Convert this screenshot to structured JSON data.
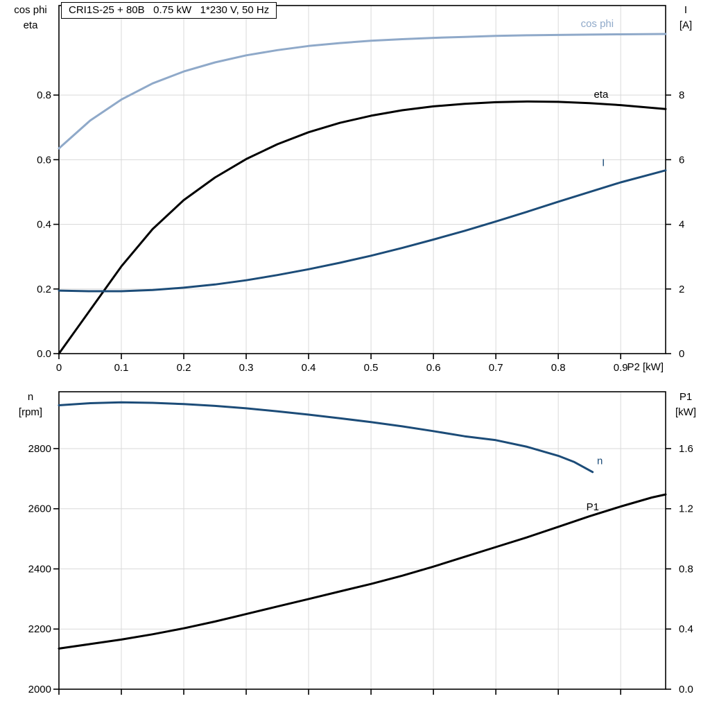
{
  "title": "CRI1S-25 + 80B   0.75 kW   1*230 V, 50 Hz",
  "axis_titles": {
    "top_left_line1": "cos phi",
    "top_left_line2": "eta",
    "top_right_line1": "I",
    "top_right_line2": "[A]",
    "x_label": "P2 [kW]",
    "bottom_left_line1": "n",
    "bottom_left_line2": "[rpm]",
    "bottom_right_line1": "P1",
    "bottom_right_line2": "[kW]"
  },
  "colors": {
    "cos_phi": "#8fa9c9",
    "dark_blue": "#1c4c78",
    "black": "#000000",
    "grid": "#d9d9d9",
    "axis": "#000000"
  },
  "chart_data": [
    {
      "type": "line",
      "title": "CRI1S-25 + 80B   0.75 kW   1*230 V, 50 Hz",
      "x_axis": {
        "min": 0,
        "max": 0.972,
        "label": "P2 [kW]",
        "ticks": [
          0,
          0.1,
          0.2,
          0.3,
          0.4,
          0.5,
          0.6,
          0.7,
          0.8,
          0.9
        ],
        "tick_labels": [
          "0",
          "0.1",
          "0.2",
          "0.3",
          "0.4",
          "0.5",
          "0.6",
          "0.7",
          "0.8",
          "0.9"
        ]
      },
      "y_left": {
        "min": 0,
        "max": 1.077,
        "label": "cos phi / eta",
        "ticks": [
          0,
          0.2,
          0.4,
          0.6,
          0.8
        ],
        "tick_labels": [
          "0.0",
          "0.2",
          "0.4",
          "0.6",
          "0.8"
        ]
      },
      "y_right": {
        "min": 0,
        "max": 10.77,
        "label": "I [A]",
        "ticks": [
          0,
          2,
          4,
          6,
          8
        ],
        "tick_labels": [
          "0",
          "2",
          "4",
          "6",
          "8"
        ]
      },
      "series": [
        {
          "name": "cos phi",
          "axis": "left",
          "color_key": "cos_phi",
          "width": 3,
          "label": {
            "text": "cos phi",
            "x": 0.836,
            "y": 1.01
          },
          "points": [
            [
              0,
              0.635
            ],
            [
              0.05,
              0.721
            ],
            [
              0.1,
              0.786
            ],
            [
              0.15,
              0.836
            ],
            [
              0.2,
              0.873
            ],
            [
              0.25,
              0.901
            ],
            [
              0.3,
              0.923
            ],
            [
              0.35,
              0.939
            ],
            [
              0.4,
              0.952
            ],
            [
              0.45,
              0.961
            ],
            [
              0.5,
              0.968
            ],
            [
              0.55,
              0.973
            ],
            [
              0.6,
              0.977
            ],
            [
              0.65,
              0.98
            ],
            [
              0.7,
              0.983
            ],
            [
              0.75,
              0.985
            ],
            [
              0.8,
              0.986
            ],
            [
              0.85,
              0.987
            ],
            [
              0.9,
              0.988
            ],
            [
              0.972,
              0.989
            ]
          ]
        },
        {
          "name": "eta",
          "axis": "left",
          "color_key": "black",
          "width": 3,
          "label": {
            "text": "eta",
            "x": 0.857,
            "y": 0.792
          },
          "points": [
            [
              0,
              0
            ],
            [
              0.05,
              0.135
            ],
            [
              0.1,
              0.27
            ],
            [
              0.15,
              0.385
            ],
            [
              0.2,
              0.475
            ],
            [
              0.25,
              0.545
            ],
            [
              0.3,
              0.602
            ],
            [
              0.35,
              0.648
            ],
            [
              0.4,
              0.685
            ],
            [
              0.45,
              0.714
            ],
            [
              0.5,
              0.736
            ],
            [
              0.55,
              0.753
            ],
            [
              0.6,
              0.765
            ],
            [
              0.65,
              0.773
            ],
            [
              0.7,
              0.778
            ],
            [
              0.75,
              0.78
            ],
            [
              0.8,
              0.779
            ],
            [
              0.85,
              0.775
            ],
            [
              0.9,
              0.769
            ],
            [
              0.972,
              0.757
            ]
          ]
        },
        {
          "name": "I",
          "axis": "right",
          "color_key": "dark_blue",
          "width": 3,
          "label": {
            "text": "I",
            "x": 0.87,
            "y": 5.8
          },
          "points": [
            [
              0,
              1.95
            ],
            [
              0.05,
              1.93
            ],
            [
              0.1,
              1.93
            ],
            [
              0.15,
              1.97
            ],
            [
              0.2,
              2.04
            ],
            [
              0.25,
              2.14
            ],
            [
              0.3,
              2.27
            ],
            [
              0.35,
              2.43
            ],
            [
              0.4,
              2.61
            ],
            [
              0.45,
              2.81
            ],
            [
              0.5,
              3.03
            ],
            [
              0.55,
              3.27
            ],
            [
              0.6,
              3.53
            ],
            [
              0.65,
              3.8
            ],
            [
              0.7,
              4.09
            ],
            [
              0.75,
              4.39
            ],
            [
              0.8,
              4.7
            ],
            [
              0.85,
              5.0
            ],
            [
              0.9,
              5.3
            ],
            [
              0.972,
              5.67
            ]
          ]
        }
      ]
    },
    {
      "type": "line",
      "x_axis": {
        "min": 0,
        "max": 0.972,
        "label": "",
        "ticks": [
          0,
          0.1,
          0.2,
          0.3,
          0.4,
          0.5,
          0.6,
          0.7,
          0.8,
          0.9
        ],
        "tick_labels": []
      },
      "y_left": {
        "min": 2000,
        "max": 2989,
        "label": "n [rpm]",
        "ticks": [
          2000,
          2200,
          2400,
          2600,
          2800
        ],
        "tick_labels": [
          "2000",
          "2200",
          "2400",
          "2600",
          "2800"
        ]
      },
      "y_right": {
        "min": 0,
        "max": 1.978,
        "label": "P1 [kW]",
        "ticks": [
          0,
          0.4,
          0.8,
          1.2,
          1.6
        ],
        "tick_labels": [
          "0.0",
          "0.4",
          "0.8",
          "1.2",
          "1.6"
        ]
      },
      "series": [
        {
          "name": "n",
          "axis": "left",
          "color_key": "dark_blue",
          "width": 3,
          "label": {
            "text": "n",
            "x": 0.862,
            "y": 2748
          },
          "points": [
            [
              0,
              2944
            ],
            [
              0.05,
              2951
            ],
            [
              0.1,
              2954
            ],
            [
              0.15,
              2952
            ],
            [
              0.2,
              2948
            ],
            [
              0.25,
              2942
            ],
            [
              0.3,
              2934
            ],
            [
              0.35,
              2924
            ],
            [
              0.4,
              2913
            ],
            [
              0.45,
              2901
            ],
            [
              0.5,
              2888
            ],
            [
              0.55,
              2874
            ],
            [
              0.6,
              2858
            ],
            [
              0.65,
              2841
            ],
            [
              0.7,
              2828
            ],
            [
              0.75,
              2806
            ],
            [
              0.8,
              2776
            ],
            [
              0.825,
              2756
            ],
            [
              0.855,
              2722
            ]
          ]
        },
        {
          "name": "P1",
          "axis": "right",
          "color_key": "black",
          "width": 3,
          "label": {
            "text": "P1",
            "x": 0.845,
            "y": 1.19
          },
          "points": [
            [
              0,
              0.27
            ],
            [
              0.05,
              0.3
            ],
            [
              0.1,
              0.33
            ],
            [
              0.15,
              0.365
            ],
            [
              0.2,
              0.405
            ],
            [
              0.25,
              0.45
            ],
            [
              0.3,
              0.5
            ],
            [
              0.35,
              0.55
            ],
            [
              0.4,
              0.6
            ],
            [
              0.45,
              0.65
            ],
            [
              0.5,
              0.7
            ],
            [
              0.55,
              0.755
            ],
            [
              0.6,
              0.815
            ],
            [
              0.65,
              0.88
            ],
            [
              0.7,
              0.945
            ],
            [
              0.75,
              1.01
            ],
            [
              0.8,
              1.08
            ],
            [
              0.85,
              1.15
            ],
            [
              0.9,
              1.215
            ],
            [
              0.95,
              1.275
            ],
            [
              0.972,
              1.295
            ]
          ]
        }
      ]
    }
  ]
}
